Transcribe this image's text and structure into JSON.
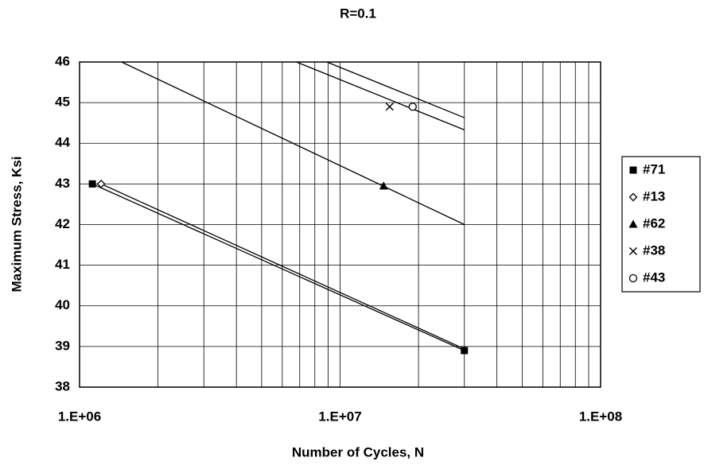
{
  "chart_data": {
    "type": "scatter",
    "title": "R=0.1",
    "xlabel": "Number of Cycles, N",
    "ylabel": "Maximum Stress, Ksi",
    "xscale": "log",
    "xlim": [
      1000000,
      100000000
    ],
    "xticks": [
      {
        "value": 1000000,
        "label": "1.E+06"
      },
      {
        "value": 10000000,
        "label": "1.E+07"
      },
      {
        "value": 100000000,
        "label": "1.E+08"
      }
    ],
    "ylim": [
      38,
      46
    ],
    "yticks": [
      38,
      39,
      40,
      41,
      42,
      43,
      44,
      45,
      46
    ],
    "grid": true,
    "minor_grid": true,
    "legend": "right",
    "series": [
      {
        "name": "#71",
        "marker": "square",
        "color": "#000000",
        "x": [
          1120000,
          30000000
        ],
        "values": [
          43,
          38.9
        ],
        "trendline": {
          "x": [
            1120000,
            30000000
          ],
          "values": [
            43,
            38.9
          ]
        }
      },
      {
        "name": "#13",
        "marker": "diamond",
        "color": "#000000",
        "x": [
          1210000
        ],
        "values": [
          43
        ],
        "trendline": {
          "x": [
            1210000,
            30000000
          ],
          "values": [
            43,
            38.94
          ]
        }
      },
      {
        "name": "#62",
        "marker": "triangle",
        "color": "#000000",
        "x": [
          14700000
        ],
        "values": [
          42.95
        ],
        "trendline": {
          "x": [
            1450000,
            30000000
          ],
          "values": [
            46,
            42
          ]
        }
      },
      {
        "name": "#38",
        "marker": "x",
        "color": "#000000",
        "x": [
          15500000
        ],
        "values": [
          44.9
        ],
        "trendline": {
          "x": [
            6800000,
            30000000
          ],
          "values": [
            46,
            44.33
          ]
        }
      },
      {
        "name": "#43",
        "marker": "circle",
        "color": "#000000",
        "x": [
          19000000
        ],
        "values": [
          44.9
        ],
        "trendline": {
          "x": [
            8900000,
            30000000
          ],
          "values": [
            46,
            44.63
          ]
        }
      }
    ]
  }
}
